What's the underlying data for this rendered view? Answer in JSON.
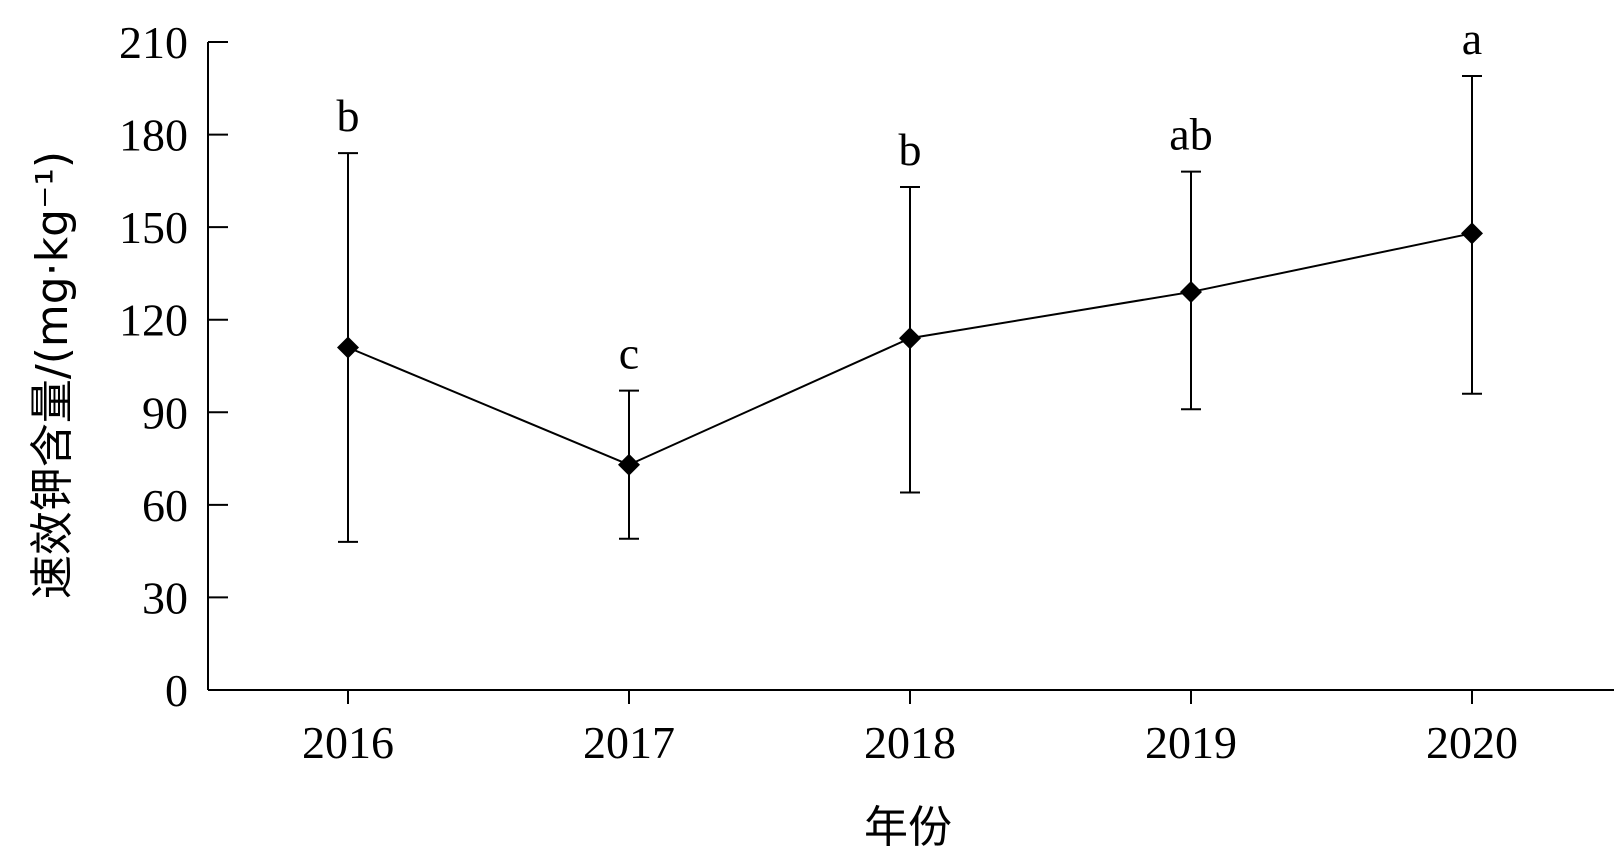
{
  "chart_data": {
    "type": "line",
    "categories": [
      "2016",
      "2017",
      "2018",
      "2019",
      "2020"
    ],
    "values": [
      111,
      73,
      114,
      129,
      148
    ],
    "error_low": [
      48,
      49,
      64,
      91,
      96
    ],
    "error_high": [
      174,
      97,
      163,
      168,
      199
    ],
    "significance": [
      "b",
      "c",
      "b",
      "ab",
      "a"
    ],
    "xlabel": "年份",
    "ylabel": "速效钾含量/(mg·kg⁻¹)",
    "ylim": [
      0,
      210
    ],
    "yticks": [
      0,
      30,
      60,
      90,
      120,
      150,
      180,
      210
    ],
    "marker": "diamond",
    "grid": false,
    "colors": {
      "line": "#000000",
      "marker": "#000000"
    }
  }
}
